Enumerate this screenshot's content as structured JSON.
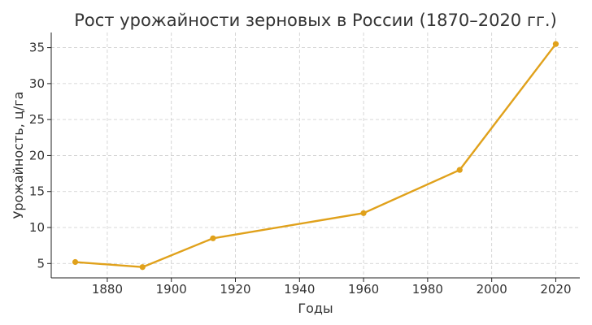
{
  "chart_data": {
    "type": "line",
    "title": "Рост урожайности зерновых в России (1870–2020 гг.)",
    "xlabel": "Годы",
    "ylabel": "Урожайность, ц/га",
    "x": [
      1870,
      1891,
      1913,
      1960,
      1990,
      2020
    ],
    "series": [
      {
        "values": [
          5.2,
          4.5,
          8.5,
          12.0,
          18.0,
          35.5
        ],
        "color": "#e0a11b"
      }
    ],
    "xticks": [
      1880,
      1900,
      1920,
      1940,
      1960,
      1980,
      2000,
      2020
    ],
    "yticks": [
      5,
      10,
      15,
      20,
      25,
      30,
      35
    ],
    "xlim": [
      1862.5,
      2027.5
    ],
    "ylim": [
      3.0,
      37.1
    ],
    "grid": true
  }
}
